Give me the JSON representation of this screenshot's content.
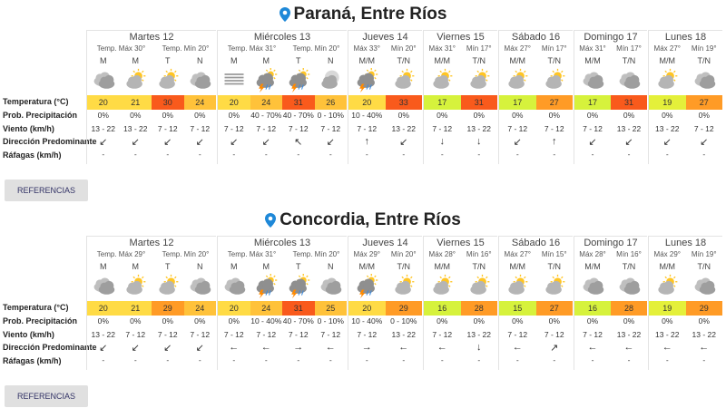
{
  "panels": [
    {
      "title": "Paraná, Entre Ríos",
      "row_labels": [
        "Temperatura (°C)",
        "Prob. Precipitación",
        "Viento (km/h)",
        "Dirección Predominante",
        "Ráfagas (km/h)"
      ],
      "days": [
        {
          "name": "Martes 12",
          "max": "Temp. Máx 30°",
          "min": "Temp. Mín 20°",
          "periods": [
            "M",
            "M",
            "T",
            "N"
          ],
          "temperature": [
            20,
            21,
            30,
            24
          ],
          "precipitation": [
            "0%",
            "0%",
            "0%",
            "0%"
          ],
          "wind": [
            "13 - 22",
            "13 - 22",
            "7 - 12",
            "7 - 12"
          ],
          "direction": [
            "↙",
            "↙",
            "↙",
            "↙"
          ],
          "gusts": [
            "-",
            "-",
            "-",
            "-"
          ]
        },
        {
          "name": "Miércoles 13",
          "max": "Temp. Máx 31°",
          "min": "Temp. Mín 20°",
          "periods": [
            "M",
            "M",
            "T",
            "N"
          ],
          "temperature": [
            20,
            24,
            31,
            26
          ],
          "precipitation": [
            "0%",
            "40 - 70%",
            "40 - 70%",
            "0 - 10%"
          ],
          "wind": [
            "7 - 12",
            "7 - 12",
            "7 - 12",
            "7 - 12"
          ],
          "direction": [
            "↙",
            "↙",
            "↖",
            "↙"
          ],
          "gusts": [
            "-",
            "-",
            "-",
            "-"
          ]
        },
        {
          "name": "Jueves 14",
          "max": "Máx 33°",
          "min": "Mín 20°",
          "periods": [
            "M/M",
            "T/N"
          ],
          "temperature": [
            20,
            33
          ],
          "precipitation": [
            "10 - 40%",
            "0%"
          ],
          "wind": [
            "7 - 12",
            "13 - 22"
          ],
          "direction": [
            "↑",
            "↙"
          ],
          "gusts": [
            "-",
            "-"
          ]
        },
        {
          "name": "Viernes 15",
          "max": "Máx 31°",
          "min": "Mín 17°",
          "periods": [
            "M/M",
            "T/N"
          ],
          "temperature": [
            17,
            31
          ],
          "precipitation": [
            "0%",
            "0%"
          ],
          "wind": [
            "7 - 12",
            "13 - 22"
          ],
          "direction": [
            "↓",
            "↓"
          ],
          "gusts": [
            "-",
            "-"
          ]
        },
        {
          "name": "Sábado 16",
          "max": "Máx 27°",
          "min": "Mín 17°",
          "periods": [
            "M/M",
            "T/N"
          ],
          "temperature": [
            17,
            27
          ],
          "precipitation": [
            "0%",
            "0%"
          ],
          "wind": [
            "7 - 12",
            "7 - 12"
          ],
          "direction": [
            "↙",
            "↑"
          ],
          "gusts": [
            "-",
            "-"
          ]
        },
        {
          "name": "Domingo 17",
          "max": "Máx 31°",
          "min": "Mín 17°",
          "periods": [
            "M/M",
            "T/N"
          ],
          "temperature": [
            17,
            31
          ],
          "precipitation": [
            "0%",
            "0%"
          ],
          "wind": [
            "7 - 12",
            "13 - 22"
          ],
          "direction": [
            "↙",
            "↙"
          ],
          "gusts": [
            "-",
            "-"
          ]
        },
        {
          "name": "Lunes 18",
          "max": "Máx 27°",
          "min": "Mín 19°",
          "periods": [
            "M/M",
            "T/N"
          ],
          "temperature": [
            19,
            27
          ],
          "precipitation": [
            "0%",
            "0%"
          ],
          "wind": [
            "13 - 22",
            "7 - 12"
          ],
          "direction": [
            "↙",
            "↙"
          ],
          "gusts": [
            "-",
            "-"
          ]
        }
      ],
      "button": "REFERENCIAS"
    },
    {
      "title": "Concordia, Entre Ríos",
      "row_labels": [
        "Temperatura (°C)",
        "Prob. Precipitación",
        "Viento (km/h)",
        "Dirección Predominante",
        "Ráfagas (km/h)"
      ],
      "days": [
        {
          "name": "Martes 12",
          "max": "Temp. Máx 29°",
          "min": "Temp. Mín 20°",
          "periods": [
            "M",
            "M",
            "T",
            "N"
          ],
          "temperature": [
            20,
            21,
            29,
            24
          ],
          "precipitation": [
            "0%",
            "0%",
            "0%",
            "0%"
          ],
          "wind": [
            "13 - 22",
            "7 - 12",
            "7 - 12",
            "7 - 12"
          ],
          "direction": [
            "↙",
            "↙",
            "↙",
            "↙"
          ],
          "gusts": [
            "-",
            "-",
            "-",
            "-"
          ]
        },
        {
          "name": "Miércoles 13",
          "max": "Temp. Máx 31°",
          "min": "Temp. Mín 20°",
          "periods": [
            "M",
            "M",
            "T",
            "N"
          ],
          "temperature": [
            20,
            24,
            31,
            25
          ],
          "precipitation": [
            "0%",
            "10 - 40%",
            "40 - 70%",
            "0 - 10%"
          ],
          "wind": [
            "7 - 12",
            "7 - 12",
            "7 - 12",
            "7 - 12"
          ],
          "direction": [
            "←",
            "←",
            "→",
            "←"
          ],
          "gusts": [
            "-",
            "-",
            "-",
            "-"
          ]
        },
        {
          "name": "Jueves 14",
          "max": "Máx 29°",
          "min": "Mín 20°",
          "periods": [
            "M/M",
            "T/N"
          ],
          "temperature": [
            20,
            29
          ],
          "precipitation": [
            "10 - 40%",
            "0 - 10%"
          ],
          "wind": [
            "7 - 12",
            "13 - 22"
          ],
          "direction": [
            "→",
            "←"
          ],
          "gusts": [
            "-",
            "-"
          ]
        },
        {
          "name": "Viernes 15",
          "max": "Máx 28°",
          "min": "Mín 16°",
          "periods": [
            "M/M",
            "T/N"
          ],
          "temperature": [
            16,
            28
          ],
          "precipitation": [
            "0%",
            "0%"
          ],
          "wind": [
            "7 - 12",
            "13 - 22"
          ],
          "direction": [
            "←",
            "↓"
          ],
          "gusts": [
            "-",
            "-"
          ]
        },
        {
          "name": "Sábado 16",
          "max": "Máx 27°",
          "min": "Mín 15°",
          "periods": [
            "M/M",
            "T/N"
          ],
          "temperature": [
            15,
            27
          ],
          "precipitation": [
            "0%",
            "0%"
          ],
          "wind": [
            "7 - 12",
            "7 - 12"
          ],
          "direction": [
            "←",
            "↗"
          ],
          "gusts": [
            "-",
            "-"
          ]
        },
        {
          "name": "Domingo 17",
          "max": "Máx 28°",
          "min": "Mín 16°",
          "periods": [
            "M/M",
            "T/N"
          ],
          "temperature": [
            16,
            28
          ],
          "precipitation": [
            "0%",
            "0%"
          ],
          "wind": [
            "7 - 12",
            "13 - 22"
          ],
          "direction": [
            "←",
            "←"
          ],
          "gusts": [
            "-",
            "-"
          ]
        },
        {
          "name": "Lunes 18",
          "max": "Máx 29°",
          "min": "Mín 19°",
          "periods": [
            "M/M",
            "T/N"
          ],
          "temperature": [
            19,
            29
          ],
          "precipitation": [
            "0%",
            "0%"
          ],
          "wind": [
            "13 - 22",
            "13 - 22"
          ],
          "direction": [
            "←",
            "←"
          ],
          "gusts": [
            "-",
            "-"
          ]
        }
      ],
      "button": "REFERENCIAS"
    }
  ]
}
